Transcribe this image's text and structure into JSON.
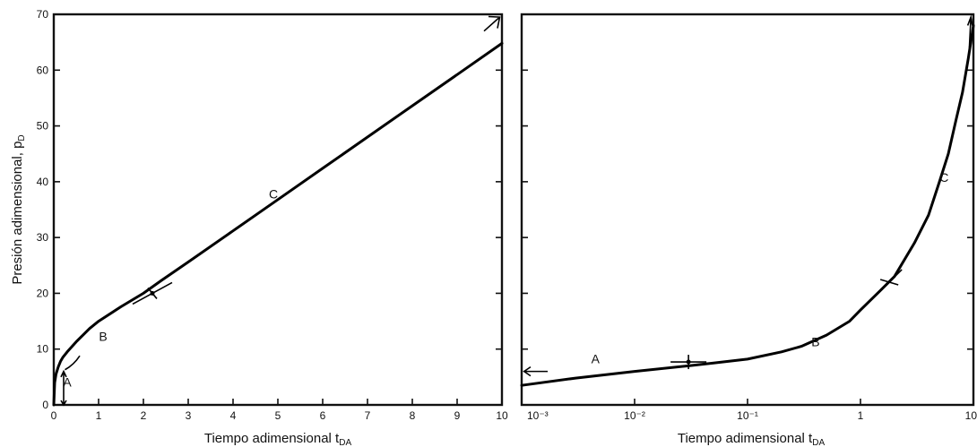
{
  "chart_data": [
    {
      "type": "line",
      "xlabel": "Tiempo adimensional t",
      "xlabel_sub": "DA",
      "ylabel": "Presión adimensional, p",
      "ylabel_sub": "D",
      "xlim": [
        0,
        10
      ],
      "ylim": [
        0,
        70
      ],
      "x_ticks": [
        0,
        1,
        2,
        3,
        4,
        5,
        6,
        7,
        8,
        9,
        10
      ],
      "x_tick_labels": [
        "0",
        "1",
        "2",
        "3",
        "4",
        "5",
        "6",
        "7",
        "8",
        "9",
        "10"
      ],
      "y_ticks": [
        0,
        10,
        20,
        30,
        40,
        50,
        60,
        70
      ],
      "y_tick_labels": [
        "0",
        "10",
        "20",
        "30",
        "40",
        "50",
        "60",
        "70"
      ],
      "series": [
        {
          "x": [
            0.0,
            0.02,
            0.05,
            0.1,
            0.15,
            0.2,
            0.3,
            0.5,
            0.8,
            1.0,
            1.5,
            2.0,
            2.4,
            3.0,
            4.0,
            5.0,
            6.0,
            7.0,
            8.0,
            9.0,
            10.0
          ],
          "y": [
            0.0,
            4.0,
            5.5,
            6.8,
            7.8,
            8.5,
            9.5,
            11.3,
            13.7,
            15.0,
            17.6,
            20.0,
            22.3,
            25.6,
            31.2,
            36.8,
            42.4,
            48.0,
            53.6,
            59.2,
            64.8
          ]
        }
      ],
      "annotations": [
        {
          "text": "A",
          "x": 0.3,
          "y": 3.3
        },
        {
          "text": "B",
          "x": 1.1,
          "y": 11.5
        },
        {
          "text": "C",
          "x": 4.9,
          "y": 37.0
        }
      ]
    },
    {
      "type": "line",
      "xscale": "log",
      "xlabel": "Tiempo adimensional t",
      "xlabel_sub": "DA",
      "xlim": [
        0.001,
        10
      ],
      "ylim": [
        0,
        70
      ],
      "x_ticks": [
        0.001,
        0.01,
        0.1,
        1,
        10
      ],
      "x_tick_labels": [
        "10⁻³",
        "10⁻²",
        "10⁻¹",
        "1",
        "10"
      ],
      "y_ticks": [
        0,
        10,
        20,
        30,
        40,
        50,
        60,
        70
      ],
      "series": [
        {
          "x": [
            0.001,
            0.003,
            0.01,
            0.03,
            0.05,
            0.1,
            0.2,
            0.3,
            0.5,
            0.8,
            1.0,
            1.5,
            2.0,
            3.0,
            4.0,
            5.0,
            6.0,
            7.0,
            8.0,
            9.0,
            10.0
          ],
          "y": [
            3.5,
            4.8,
            6.0,
            7.0,
            7.5,
            8.2,
            9.5,
            10.5,
            12.5,
            15.0,
            17.0,
            20.5,
            23.0,
            29.0,
            34.0,
            40.0,
            45.0,
            51.0,
            56.0,
            62.0,
            68.0
          ]
        }
      ],
      "annotations": [
        {
          "text": "A",
          "x": 0.0045,
          "y": 7.5
        },
        {
          "text": "B",
          "x": 0.4,
          "y": 10.5
        },
        {
          "text": "C",
          "x": 5.5,
          "y": 40.0
        }
      ]
    }
  ]
}
